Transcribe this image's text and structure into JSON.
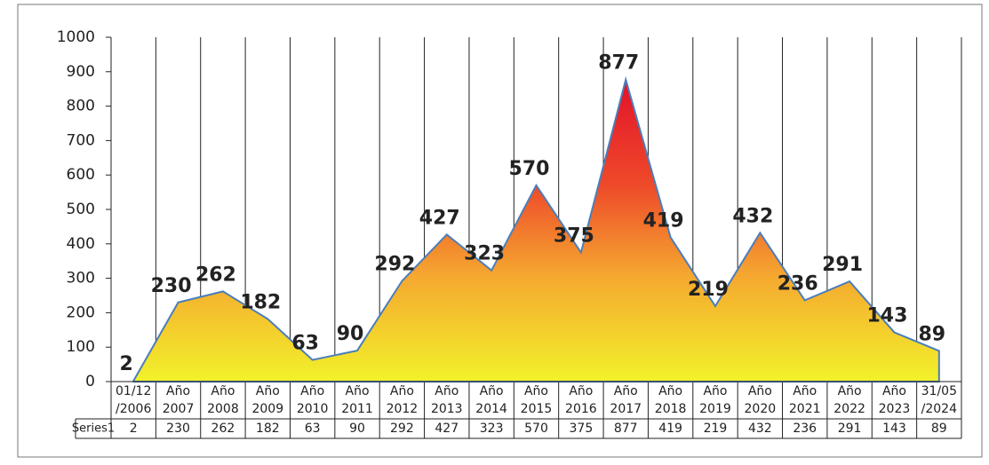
{
  "chart_data": {
    "type": "area",
    "categories": [
      "01/12/2006",
      "Año 2007",
      "Año 2008",
      "Año 2009",
      "Año 2010",
      "Año 2011",
      "Año 2012",
      "Año 2013",
      "Año 2014",
      "Año 2015",
      "Año 2016",
      "Año 2017",
      "Año 2018",
      "Año 2019",
      "Año 2020",
      "Año 2021",
      "Año 2022",
      "Año 2023",
      "31/05/2024"
    ],
    "series": [
      {
        "name": "Series1",
        "color": "#4a7ebb",
        "values": [
          2,
          230,
          262,
          182,
          63,
          90,
          292,
          427,
          323,
          570,
          375,
          877,
          419,
          219,
          432,
          236,
          291,
          143,
          89
        ]
      }
    ],
    "ylim": [
      0,
      1000
    ],
    "yticks": [
      0,
      100,
      200,
      300,
      400,
      500,
      600,
      700,
      800,
      900,
      1000
    ],
    "grid": "vertical",
    "data_table": true
  }
}
